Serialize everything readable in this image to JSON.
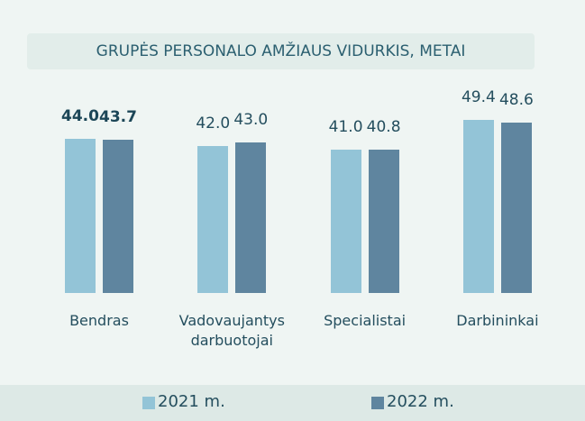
{
  "chart_data": {
    "type": "bar",
    "title": "GRUPĖS PERSONALO AMŽIAUS VIDURKIS, METAI",
    "categories": [
      "Bendras",
      "Vadovaujantys darbuotojai",
      "Specialistai",
      "Darbininkai"
    ],
    "series": [
      {
        "name": "2021 m.",
        "color": "#93c4d7",
        "values": [
          44.0,
          42.0,
          41.0,
          49.4
        ],
        "value_labels": [
          "44.0",
          "42.0",
          "41.0",
          "49.4"
        ]
      },
      {
        "name": "2022 m.",
        "color": "#5f859f",
        "values": [
          43.7,
          43.0,
          40.8,
          48.6
        ],
        "value_labels": [
          "43.7",
          "43.0",
          "40.8",
          "48.6"
        ]
      }
    ],
    "legend": "bottom"
  }
}
